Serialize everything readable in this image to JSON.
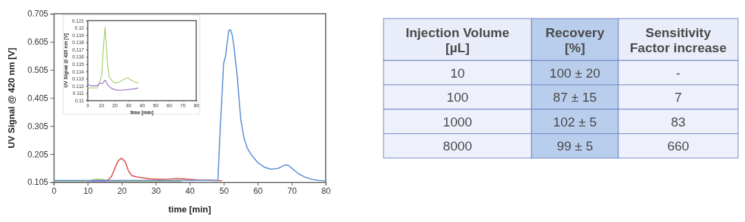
{
  "chart_data": [
    {
      "type": "line",
      "xlabel": "time [min]",
      "ylabel": "UV Signal @ 420 nm [V]",
      "xlim": [
        0,
        80
      ],
      "xticks": [
        0,
        10,
        20,
        30,
        40,
        50,
        60,
        70,
        80
      ],
      "ylim": [
        0.105,
        0.705
      ],
      "yticks": [
        {
          "value": 0.105,
          "label": "0.105"
        },
        {
          "value": 0.205,
          "label": "0.205"
        },
        {
          "value": 0.305,
          "label": "0.305"
        },
        {
          "value": 0.405,
          "label": "0.405"
        },
        {
          "value": 0.505,
          "label": "0.505"
        },
        {
          "value": 0.605,
          "label": "0.605"
        },
        {
          "value": 0.705,
          "label": "0.705"
        }
      ],
      "grid": false,
      "series": [
        {
          "color": "#8c62c8",
          "x": [
            0,
            10,
            20,
            30,
            37.5
          ],
          "values": [
            0.108,
            0.108,
            0.108,
            0.108,
            0.108
          ]
        },
        {
          "color": "#9bc95a",
          "x": [
            0,
            10,
            11,
            13,
            15,
            16,
            20,
            30,
            37.5
          ],
          "values": [
            0.109,
            0.109,
            0.111,
            0.116,
            0.113,
            0.11,
            0.109,
            0.109,
            0.109
          ]
        },
        {
          "color": "#d9534a",
          "x": [
            15.3,
            16,
            17,
            18,
            19,
            20,
            21,
            22,
            23,
            25,
            28,
            31,
            34,
            36,
            38,
            42,
            46,
            49.5
          ],
          "values": [
            0.11,
            0.113,
            0.125,
            0.155,
            0.182,
            0.19,
            0.178,
            0.145,
            0.128,
            0.122,
            0.117,
            0.115,
            0.116,
            0.118,
            0.117,
            0.113,
            0.112,
            0.11
          ]
        },
        {
          "color": "#5b8fd6",
          "x": [
            0,
            20,
            40,
            48.3,
            49,
            50,
            50.5,
            51.5,
            52,
            52.5,
            53,
            54,
            55,
            56,
            57,
            58,
            60,
            62,
            64,
            66,
            68,
            69,
            70,
            72,
            74,
            76,
            78,
            80
          ],
          "values": [
            0.111,
            0.111,
            0.111,
            0.111,
            0.3,
            0.53,
            0.55,
            0.645,
            0.648,
            0.63,
            0.59,
            0.48,
            0.33,
            0.26,
            0.225,
            0.205,
            0.175,
            0.158,
            0.151,
            0.154,
            0.166,
            0.165,
            0.155,
            0.135,
            0.122,
            0.115,
            0.111,
            0.11
          ]
        }
      ]
    },
    {
      "type": "line",
      "xlabel": "time [min]",
      "ylabel": "UV Signal @ 420 nm [V]",
      "xlim": [
        0,
        80
      ],
      "xticks": [
        0,
        10,
        20,
        30,
        40,
        50,
        60,
        70,
        80
      ],
      "ylim": [
        0.11,
        0.121
      ],
      "yticks": [
        0.11,
        0.111,
        0.112,
        0.113,
        0.114,
        0.115,
        0.116,
        0.117,
        0.118,
        0.119,
        0.12,
        0.121
      ],
      "grid": false,
      "series": [
        {
          "color": "#9bc95a",
          "x": [
            0,
            3,
            7,
            9,
            10.5,
            12,
            13,
            14,
            15,
            16,
            18,
            20,
            23,
            26,
            29,
            30,
            32,
            35,
            37.5
          ],
          "values": [
            0.1117,
            0.1117,
            0.1117,
            0.1125,
            0.1135,
            0.118,
            0.1201,
            0.117,
            0.1145,
            0.1133,
            0.1127,
            0.1124,
            0.1125,
            0.1128,
            0.1131,
            0.1131,
            0.1128,
            0.1125,
            0.1124
          ]
        },
        {
          "color": "#8c62c8",
          "x": [
            0,
            3,
            6,
            8,
            9,
            11,
            13,
            15,
            18,
            22,
            25,
            30,
            35,
            37.5
          ],
          "values": [
            0.1122,
            0.112,
            0.112,
            0.1121,
            0.1124,
            0.1123,
            0.1128,
            0.1121,
            0.1116,
            0.1114,
            0.1114,
            0.1115,
            0.1116,
            0.1117
          ]
        }
      ]
    },
    {
      "type": "other",
      "categories": [
        "Injection Volume [µL]",
        "Recovery [%]",
        "Sensitivity Factor increase"
      ],
      "annotations": [
        "10",
        "100 ± 20",
        "-",
        "100",
        "87 ± 15",
        "7",
        "1000",
        "102 ± 5",
        "83",
        "8000",
        "99 ± 5",
        "660"
      ]
    }
  ]
}
